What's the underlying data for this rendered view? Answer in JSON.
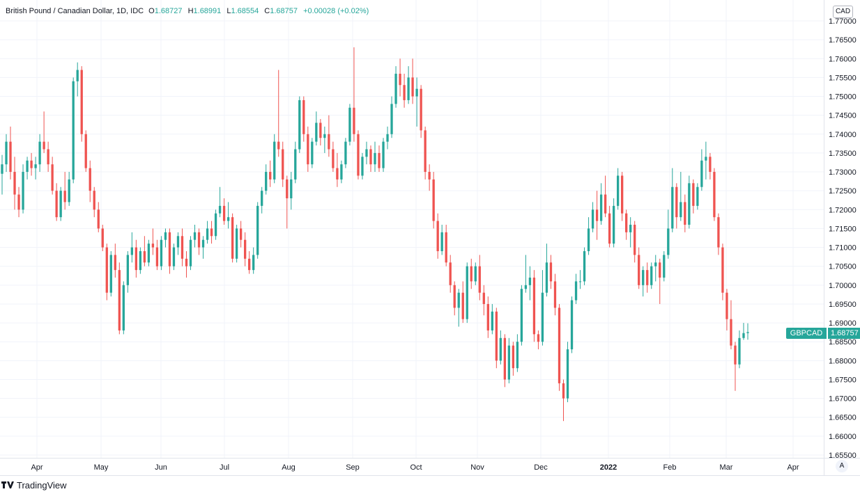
{
  "header": {
    "symbol_title": "British Pound / Canadian Dollar, 1D, IDC",
    "o_label": "O",
    "o_value": "1.68727",
    "h_label": "H",
    "h_value": "1.68991",
    "l_label": "L",
    "l_value": "1.68554",
    "c_label": "C",
    "c_value": "1.68757",
    "change": "+0.00028 (+0.02%)"
  },
  "currency_label": "CAD",
  "auto_label": "A",
  "last_price_tag": {
    "symbol": "GBPCAD",
    "price": "1.68757"
  },
  "footer": {
    "brand": "TradingView",
    "logo_icon": "tradingview-logo-icon"
  },
  "colors": {
    "up": "#26a69a",
    "down": "#ef5350",
    "grid": "#f0f3fa",
    "axis_text": "#131722"
  },
  "chart_data": {
    "type": "candlestick",
    "title": "British Pound / Canadian Dollar, 1D, IDC",
    "ylim": [
      1.655,
      1.77
    ],
    "y_ticks": [
      "1.77000",
      "1.76500",
      "1.76000",
      "1.75500",
      "1.75000",
      "1.74500",
      "1.74000",
      "1.73500",
      "1.73000",
      "1.72500",
      "1.72000",
      "1.71500",
      "1.71000",
      "1.70500",
      "1.70000",
      "1.69500",
      "1.69000",
      "1.68500",
      "1.68000",
      "1.67500",
      "1.67000",
      "1.66500",
      "1.66000",
      "1.65500"
    ],
    "x_ticks": [
      {
        "label": "Apr",
        "bold": false
      },
      {
        "label": "May",
        "bold": false
      },
      {
        "label": "Jun",
        "bold": false
      },
      {
        "label": "Jul",
        "bold": false
      },
      {
        "label": "Aug",
        "bold": false
      },
      {
        "label": "Sep",
        "bold": false
      },
      {
        "label": "Oct",
        "bold": false
      },
      {
        "label": "Nov",
        "bold": false
      },
      {
        "label": "Dec",
        "bold": false
      },
      {
        "label": "2022",
        "bold": true
      },
      {
        "label": "Feb",
        "bold": false
      },
      {
        "label": "Mar",
        "bold": false
      },
      {
        "label": "Apr",
        "bold": false
      }
    ],
    "last_close": 1.68757,
    "candles": [
      [
        1.7295,
        1.7345,
        1.724,
        1.732
      ],
      [
        1.732,
        1.74,
        1.73,
        1.738
      ],
      [
        1.738,
        1.742,
        1.728,
        1.73
      ],
      [
        1.73,
        1.734,
        1.72,
        1.724
      ],
      [
        1.724,
        1.726,
        1.718,
        1.72
      ],
      [
        1.72,
        1.732,
        1.719,
        1.73
      ],
      [
        1.73,
        1.734,
        1.728,
        1.733
      ],
      [
        1.733,
        1.735,
        1.729,
        1.731
      ],
      [
        1.731,
        1.734,
        1.728,
        1.732
      ],
      [
        1.732,
        1.74,
        1.73,
        1.738
      ],
      [
        1.738,
        1.746,
        1.735,
        1.736
      ],
      [
        1.736,
        1.738,
        1.73,
        1.732
      ],
      [
        1.732,
        1.734,
        1.724,
        1.725
      ],
      [
        1.725,
        1.727,
        1.717,
        1.718
      ],
      [
        1.718,
        1.726,
        1.717,
        1.725
      ],
      [
        1.725,
        1.73,
        1.72,
        1.722
      ],
      [
        1.722,
        1.73,
        1.721,
        1.728
      ],
      [
        1.728,
        1.755,
        1.727,
        1.754
      ],
      [
        1.754,
        1.759,
        1.75,
        1.757
      ],
      [
        1.757,
        1.758,
        1.738,
        1.74
      ],
      [
        1.74,
        1.741,
        1.73,
        1.731
      ],
      [
        1.731,
        1.733,
        1.722,
        1.725
      ],
      [
        1.725,
        1.726,
        1.718,
        1.72
      ],
      [
        1.72,
        1.722,
        1.714,
        1.715
      ],
      [
        1.715,
        1.716,
        1.709,
        1.71
      ],
      [
        1.71,
        1.711,
        1.696,
        1.698
      ],
      [
        1.698,
        1.709,
        1.697,
        1.708
      ],
      [
        1.708,
        1.711,
        1.702,
        1.704
      ],
      [
        1.704,
        1.706,
        1.687,
        1.688
      ],
      [
        1.688,
        1.701,
        1.687,
        1.7
      ],
      [
        1.7,
        1.709,
        1.698,
        1.708
      ],
      [
        1.708,
        1.714,
        1.706,
        1.71
      ],
      [
        1.71,
        1.712,
        1.702,
        1.704
      ],
      [
        1.704,
        1.71,
        1.703,
        1.709
      ],
      [
        1.709,
        1.713,
        1.705,
        1.706
      ],
      [
        1.706,
        1.712,
        1.705,
        1.711
      ],
      [
        1.711,
        1.715,
        1.708,
        1.71
      ],
      [
        1.71,
        1.712,
        1.704,
        1.705
      ],
      [
        1.705,
        1.713,
        1.704,
        1.712
      ],
      [
        1.712,
        1.715,
        1.71,
        1.714
      ],
      [
        1.714,
        1.715,
        1.703,
        1.705
      ],
      [
        1.705,
        1.711,
        1.704,
        1.71
      ],
      [
        1.71,
        1.714,
        1.708,
        1.713
      ],
      [
        1.713,
        1.715,
        1.705,
        1.707
      ],
      [
        1.707,
        1.709,
        1.702,
        1.705
      ],
      [
        1.705,
        1.713,
        1.704,
        1.712
      ],
      [
        1.712,
        1.716,
        1.71,
        1.714
      ],
      [
        1.714,
        1.715,
        1.708,
        1.71
      ],
      [
        1.71,
        1.713,
        1.707,
        1.712
      ],
      [
        1.712,
        1.717,
        1.711,
        1.715
      ],
      [
        1.715,
        1.717,
        1.711,
        1.713
      ],
      [
        1.713,
        1.72,
        1.712,
        1.719
      ],
      [
        1.719,
        1.726,
        1.718,
        1.721
      ],
      [
        1.721,
        1.723,
        1.716,
        1.717
      ],
      [
        1.717,
        1.722,
        1.715,
        1.718
      ],
      [
        1.718,
        1.719,
        1.706,
        1.707
      ],
      [
        1.707,
        1.716,
        1.706,
        1.715
      ],
      [
        1.715,
        1.717,
        1.71,
        1.712
      ],
      [
        1.712,
        1.714,
        1.705,
        1.707
      ],
      [
        1.707,
        1.709,
        1.703,
        1.704
      ],
      [
        1.704,
        1.71,
        1.703,
        1.708
      ],
      [
        1.708,
        1.722,
        1.707,
        1.721
      ],
      [
        1.721,
        1.726,
        1.719,
        1.725
      ],
      [
        1.725,
        1.732,
        1.724,
        1.73
      ],
      [
        1.73,
        1.733,
        1.726,
        1.728
      ],
      [
        1.728,
        1.74,
        1.727,
        1.738
      ],
      [
        1.738,
        1.757,
        1.734,
        1.736
      ],
      [
        1.736,
        1.738,
        1.726,
        1.728
      ],
      [
        1.728,
        1.729,
        1.715,
        1.723
      ],
      [
        1.723,
        1.73,
        1.72,
        1.728
      ],
      [
        1.728,
        1.738,
        1.727,
        1.736
      ],
      [
        1.736,
        1.75,
        1.735,
        1.749
      ],
      [
        1.749,
        1.75,
        1.738,
        1.74
      ],
      [
        1.74,
        1.742,
        1.73,
        1.732
      ],
      [
        1.732,
        1.739,
        1.731,
        1.738
      ],
      [
        1.738,
        1.746,
        1.737,
        1.743
      ],
      [
        1.743,
        1.744,
        1.737,
        1.739
      ],
      [
        1.739,
        1.742,
        1.735,
        1.74
      ],
      [
        1.74,
        1.745,
        1.734,
        1.736
      ],
      [
        1.736,
        1.738,
        1.73,
        1.731
      ],
      [
        1.731,
        1.735,
        1.726,
        1.728
      ],
      [
        1.728,
        1.733,
        1.727,
        1.732
      ],
      [
        1.732,
        1.739,
        1.731,
        1.738
      ],
      [
        1.738,
        1.748,
        1.737,
        1.747
      ],
      [
        1.747,
        1.763,
        1.738,
        1.74
      ],
      [
        1.74,
        1.741,
        1.728,
        1.729
      ],
      [
        1.729,
        1.735,
        1.728,
        1.734
      ],
      [
        1.734,
        1.738,
        1.732,
        1.736
      ],
      [
        1.736,
        1.737,
        1.73,
        1.732
      ],
      [
        1.732,
        1.738,
        1.73,
        1.735
      ],
      [
        1.735,
        1.737,
        1.73,
        1.731
      ],
      [
        1.731,
        1.739,
        1.73,
        1.738
      ],
      [
        1.738,
        1.742,
        1.736,
        1.74
      ],
      [
        1.74,
        1.75,
        1.739,
        1.748
      ],
      [
        1.748,
        1.758,
        1.747,
        1.756
      ],
      [
        1.756,
        1.76,
        1.75,
        1.753
      ],
      [
        1.753,
        1.756,
        1.747,
        1.749
      ],
      [
        1.749,
        1.758,
        1.748,
        1.755
      ],
      [
        1.755,
        1.76,
        1.748,
        1.75
      ],
      [
        1.75,
        1.755,
        1.742,
        1.752
      ],
      [
        1.752,
        1.753,
        1.739,
        1.741
      ],
      [
        1.741,
        1.742,
        1.728,
        1.73
      ],
      [
        1.73,
        1.732,
        1.725,
        1.728
      ],
      [
        1.728,
        1.73,
        1.715,
        1.717
      ],
      [
        1.717,
        1.719,
        1.707,
        1.709
      ],
      [
        1.709,
        1.716,
        1.708,
        1.714
      ],
      [
        1.714,
        1.716,
        1.705,
        1.706
      ],
      [
        1.706,
        1.708,
        1.698,
        1.7
      ],
      [
        1.7,
        1.701,
        1.692,
        1.694
      ],
      [
        1.694,
        1.699,
        1.689,
        1.698
      ],
      [
        1.698,
        1.701,
        1.69,
        1.691
      ],
      [
        1.691,
        1.706,
        1.69,
        1.705
      ],
      [
        1.705,
        1.707,
        1.699,
        1.701
      ],
      [
        1.701,
        1.706,
        1.7,
        1.705
      ],
      [
        1.705,
        1.708,
        1.696,
        1.698
      ],
      [
        1.698,
        1.7,
        1.692,
        1.695
      ],
      [
        1.695,
        1.697,
        1.686,
        1.688
      ],
      [
        1.688,
        1.695,
        1.687,
        1.693
      ],
      [
        1.693,
        1.694,
        1.678,
        1.68
      ],
      [
        1.68,
        1.688,
        1.679,
        1.686
      ],
      [
        1.686,
        1.687,
        1.673,
        1.675
      ],
      [
        1.675,
        1.686,
        1.674,
        1.684
      ],
      [
        1.684,
        1.685,
        1.676,
        1.678
      ],
      [
        1.678,
        1.687,
        1.677,
        1.685
      ],
      [
        1.685,
        1.7,
        1.684,
        1.699
      ],
      [
        1.699,
        1.708,
        1.698,
        1.7
      ],
      [
        1.7,
        1.705,
        1.696,
        1.702
      ],
      [
        1.702,
        1.704,
        1.685,
        1.687
      ],
      [
        1.687,
        1.688,
        1.683,
        1.685
      ],
      [
        1.685,
        1.704,
        1.684,
        1.698
      ],
      [
        1.698,
        1.711,
        1.697,
        1.706
      ],
      [
        1.706,
        1.708,
        1.699,
        1.701
      ],
      [
        1.701,
        1.703,
        1.692,
        1.694
      ],
      [
        1.694,
        1.695,
        1.672,
        1.674
      ],
      [
        1.674,
        1.675,
        1.664,
        1.67
      ],
      [
        1.67,
        1.685,
        1.669,
        1.683
      ],
      [
        1.683,
        1.697,
        1.682,
        1.696
      ],
      [
        1.696,
        1.703,
        1.695,
        1.701
      ],
      [
        1.701,
        1.704,
        1.699,
        1.701
      ],
      [
        1.701,
        1.71,
        1.7,
        1.709
      ],
      [
        1.709,
        1.718,
        1.708,
        1.715
      ],
      [
        1.715,
        1.722,
        1.714,
        1.72
      ],
      [
        1.72,
        1.725,
        1.712,
        1.717
      ],
      [
        1.717,
        1.727,
        1.716,
        1.724
      ],
      [
        1.724,
        1.729,
        1.718,
        1.719
      ],
      [
        1.719,
        1.721,
        1.71,
        1.711
      ],
      [
        1.711,
        1.723,
        1.71,
        1.721
      ],
      [
        1.721,
        1.731,
        1.72,
        1.729
      ],
      [
        1.729,
        1.73,
        1.717,
        1.719
      ],
      [
        1.719,
        1.72,
        1.712,
        1.714
      ],
      [
        1.714,
        1.718,
        1.71,
        1.716
      ],
      [
        1.716,
        1.717,
        1.706,
        1.708
      ],
      [
        1.708,
        1.71,
        1.699,
        1.7
      ],
      [
        1.7,
        1.705,
        1.697,
        1.704
      ],
      [
        1.704,
        1.706,
        1.698,
        1.7
      ],
      [
        1.7,
        1.706,
        1.699,
        1.705
      ],
      [
        1.705,
        1.708,
        1.701,
        1.706
      ],
      [
        1.706,
        1.707,
        1.695,
        1.702
      ],
      [
        1.702,
        1.709,
        1.701,
        1.708
      ],
      [
        1.708,
        1.72,
        1.707,
        1.715
      ],
      [
        1.715,
        1.731,
        1.714,
        1.726
      ],
      [
        1.726,
        1.727,
        1.715,
        1.718
      ],
      [
        1.718,
        1.73,
        1.717,
        1.722
      ],
      [
        1.722,
        1.724,
        1.714,
        1.716
      ],
      [
        1.716,
        1.729,
        1.715,
        1.727
      ],
      [
        1.727,
        1.728,
        1.719,
        1.721
      ],
      [
        1.721,
        1.727,
        1.72,
        1.726
      ],
      [
        1.726,
        1.736,
        1.725,
        1.733
      ],
      [
        1.733,
        1.738,
        1.728,
        1.734
      ],
      [
        1.734,
        1.735,
        1.728,
        1.73
      ],
      [
        1.73,
        1.731,
        1.717,
        1.718
      ],
      [
        1.718,
        1.719,
        1.708,
        1.71
      ],
      [
        1.71,
        1.711,
        1.696,
        1.698
      ],
      [
        1.698,
        1.699,
        1.688,
        1.691
      ],
      [
        1.691,
        1.696,
        1.683,
        1.684
      ],
      [
        1.684,
        1.685,
        1.672,
        1.679
      ],
      [
        1.679,
        1.688,
        1.678,
        1.686
      ],
      [
        1.686,
        1.69,
        1.6855,
        1.6873
      ],
      [
        1.6873,
        1.6899,
        1.68554,
        1.68757
      ]
    ]
  }
}
